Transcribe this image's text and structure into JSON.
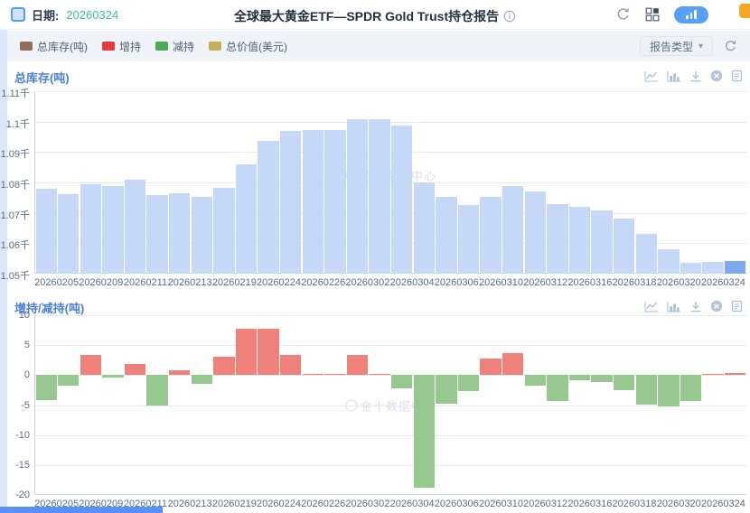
{
  "header": {
    "date_label": "日期:",
    "date_value": "20260324",
    "title": "全球最大黄金ETF—SPDR Gold Trust持仓报告"
  },
  "toolbar": {
    "legend": [
      {
        "label": "总库存(吨)",
        "color": "#8f6e5a"
      },
      {
        "label": "增持",
        "color": "#e23b3b"
      },
      {
        "label": "减持",
        "color": "#4fa952"
      },
      {
        "label": "总价值(美元)",
        "color": "#c3ae5e"
      }
    ],
    "report_type_label": "报告类型"
  },
  "watermark_text": "金十数据中心",
  "colors": {
    "inventory_bar": "#c5d8f8",
    "inventory_bar_selected": "#7ea9f0",
    "increase_bar": "#f0807a",
    "decrease_bar": "#97c88f",
    "accent_blue": "#57a0f6",
    "date_green": "#3fc08b"
  },
  "chart_data": [
    {
      "type": "bar",
      "title": "总库存(吨)",
      "ylim": [
        1050,
        1110
      ],
      "yticks": [
        {
          "v": 1110,
          "label": "1.11千"
        },
        {
          "v": 1100,
          "label": "1.1千"
        },
        {
          "v": 1090,
          "label": "1.09千"
        },
        {
          "v": 1080,
          "label": "1.08千"
        },
        {
          "v": 1070,
          "label": "1.07千"
        },
        {
          "v": 1060,
          "label": "1.06千"
        },
        {
          "v": 1050,
          "label": "1.05千"
        }
      ],
      "x_labels": [
        "20260205",
        "20260209",
        "20260211",
        "20260213",
        "20260219",
        "20260224",
        "20260226",
        "20260302",
        "20260304",
        "20260306",
        "20260310",
        "20260312",
        "20260316",
        "20260318",
        "20260320",
        "20260324"
      ],
      "values": [
        1077.8,
        1076.0,
        1079.3,
        1078.9,
        1080.8,
        1075.7,
        1076.5,
        1075.1,
        1078.2,
        1085.9,
        1093.6,
        1097.0,
        1097.2,
        1097.3,
        1100.7,
        1100.9,
        1098.7,
        1079.9,
        1075.1,
        1072.5,
        1075.2,
        1078.8,
        1077.1,
        1072.8,
        1071.9,
        1070.7,
        1068.2,
        1063.2,
        1057.9,
        1053.6,
        1053.8,
        1054.1
      ],
      "bar_mode": "column",
      "highlight_last_index": 31
    },
    {
      "type": "bar",
      "title": "增持/减持(吨)",
      "ylim": [
        -20,
        10
      ],
      "yticks": [
        {
          "v": 10,
          "label": "10"
        },
        {
          "v": 5,
          "label": "5"
        },
        {
          "v": 0,
          "label": "0"
        },
        {
          "v": -5,
          "label": "-5"
        },
        {
          "v": -10,
          "label": "-10"
        },
        {
          "v": -15,
          "label": "-15"
        },
        {
          "v": -20,
          "label": "-20"
        }
      ],
      "x_labels": [
        "20260205",
        "20260209",
        "20260211",
        "20260213",
        "20260219",
        "20260224",
        "20260226",
        "20260302",
        "20260304",
        "20260306",
        "20260310",
        "20260312",
        "20260316",
        "20260318",
        "20260320",
        "20260324"
      ],
      "values": [
        -4.1,
        -1.8,
        3.3,
        -0.4,
        1.9,
        -5.1,
        0.8,
        -1.4,
        3.1,
        7.7,
        7.7,
        3.4,
        0.2,
        0.1,
        3.4,
        0.2,
        -2.2,
        -18.8,
        -4.8,
        -2.6,
        2.7,
        3.6,
        -1.7,
        -4.3,
        -0.9,
        -1.2,
        -2.5,
        -5.0,
        -5.3,
        -4.3,
        0.2,
        0.3
      ],
      "bar_mode": "diverging"
    }
  ]
}
